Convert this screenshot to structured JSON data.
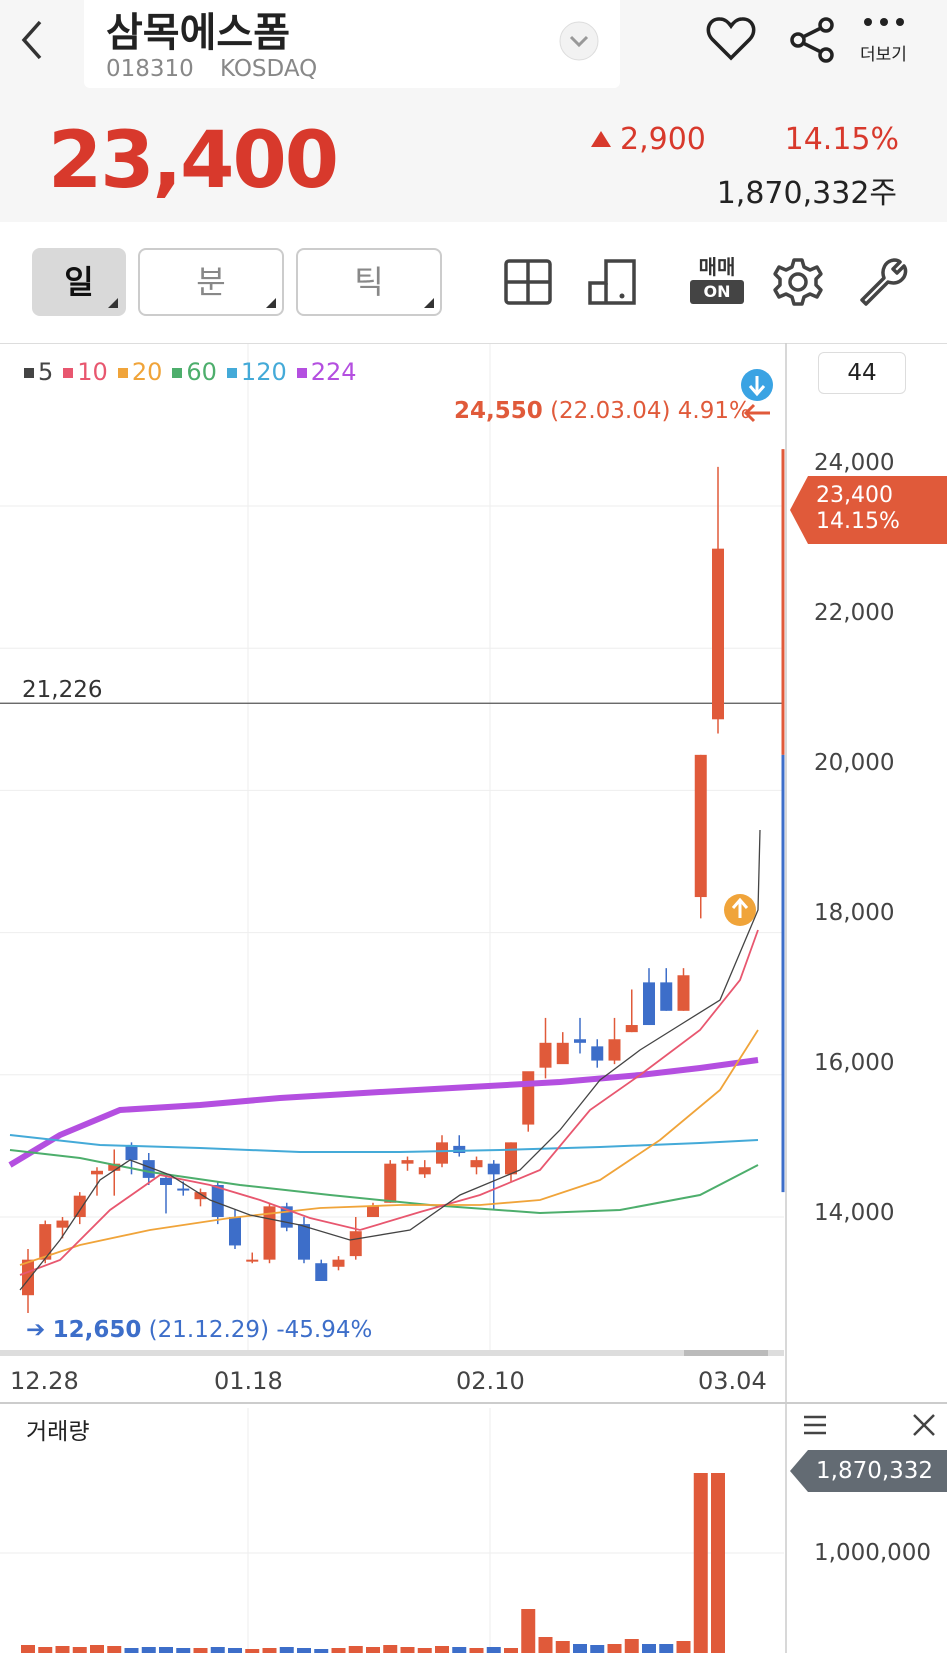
{
  "header": {
    "stock_name": "삼목에스폼",
    "stock_code": "018310",
    "market": "KOSDAQ",
    "more_label": "더보기"
  },
  "quote": {
    "price": "23,400",
    "change": "2,900",
    "change_pct": "14.15%",
    "volume": "1,870,332주"
  },
  "toolbar": {
    "period_day": "일",
    "period_minute": "분",
    "period_tick": "틱",
    "trade_label_top": "매매",
    "trade_label_bottom": "ON"
  },
  "chart": {
    "count": "44",
    "legend": [
      {
        "label": "5",
        "color": "#444444"
      },
      {
        "label": "10",
        "color": "#e8576f"
      },
      {
        "label": "20",
        "color": "#f0a43a"
      },
      {
        "label": "60",
        "color": "#4dae6c"
      },
      {
        "label": "120",
        "color": "#44aad8"
      },
      {
        "label": "224",
        "color": "#b44fe0"
      }
    ],
    "high_marker": {
      "price": "24,550",
      "detail": "(22.03.04) 4.91%"
    },
    "low_marker": {
      "price": "12,650",
      "detail": "(21.12.29) -45.94%"
    },
    "crosshair_label": "21,226",
    "y_ticks": [
      "24,000",
      "22,000",
      "20,000",
      "18,000",
      "16,000",
      "14,000"
    ],
    "current_tag": {
      "price": "23,400",
      "pct": "14.15%"
    },
    "dates": [
      "12.28",
      "01.18",
      "02.10",
      "03.04"
    ],
    "colors": {
      "up": "#e05a3a",
      "down": "#3d6ec9"
    }
  },
  "volume_panel": {
    "title": "거래량",
    "current_tag": "1,870,332",
    "y_tick": "1,000,000"
  }
}
